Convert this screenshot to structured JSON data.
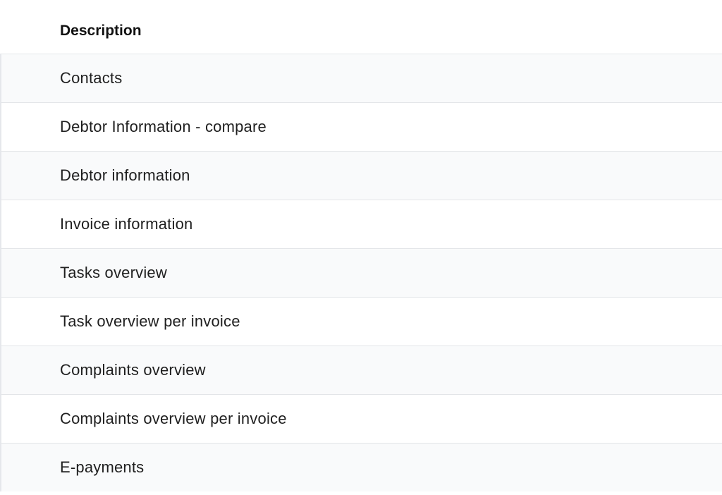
{
  "table": {
    "header": "Description",
    "rows": [
      "Contacts",
      "Debtor Information - compare",
      "Debtor information",
      "Invoice information",
      "Tasks overview",
      "Task overview per invoice",
      "Complaints overview",
      "Complaints overview per invoice",
      "E-payments"
    ]
  },
  "colors": {
    "row_alt": "#f9fafb",
    "border": "#e5e7eb"
  }
}
